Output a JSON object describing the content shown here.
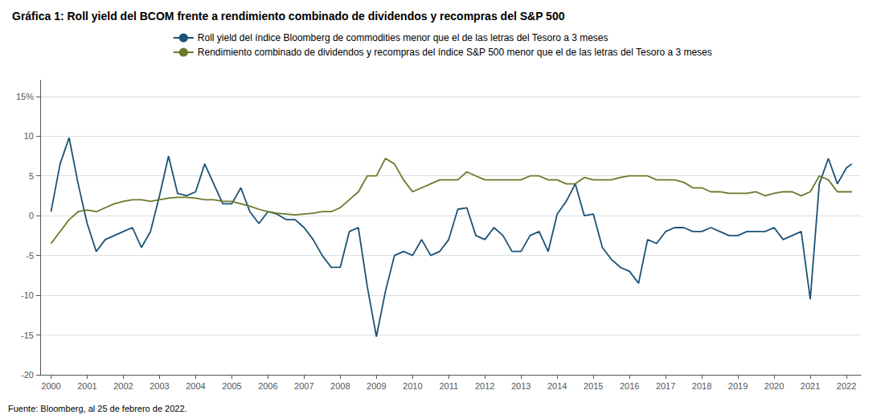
{
  "chart_data": {
    "type": "line",
    "title": "Gráfica 1: Roll yield del BCOM frente a rendimiento combinado de dividendos y recompras del S&P 500",
    "source": "Fuente: Bloomberg, al 25 de febrero de 2022.",
    "x": [
      2000.0,
      2000.25,
      2000.5,
      2000.75,
      2001.0,
      2001.25,
      2001.5,
      2001.75,
      2002.0,
      2002.25,
      2002.5,
      2002.75,
      2003.0,
      2003.25,
      2003.5,
      2003.75,
      2004.0,
      2004.25,
      2004.5,
      2004.75,
      2005.0,
      2005.25,
      2005.5,
      2005.75,
      2006.0,
      2006.25,
      2006.5,
      2006.75,
      2007.0,
      2007.25,
      2007.5,
      2007.75,
      2008.0,
      2008.25,
      2008.5,
      2008.75,
      2009.0,
      2009.25,
      2009.5,
      2009.75,
      2010.0,
      2010.25,
      2010.5,
      2010.75,
      2011.0,
      2011.25,
      2011.5,
      2011.75,
      2012.0,
      2012.25,
      2012.5,
      2012.75,
      2013.0,
      2013.25,
      2013.5,
      2013.75,
      2014.0,
      2014.25,
      2014.5,
      2014.75,
      2015.0,
      2015.25,
      2015.5,
      2015.75,
      2016.0,
      2016.25,
      2016.5,
      2016.75,
      2017.0,
      2017.25,
      2017.5,
      2017.75,
      2018.0,
      2018.25,
      2018.5,
      2018.75,
      2019.0,
      2019.25,
      2019.5,
      2019.75,
      2020.0,
      2020.25,
      2020.5,
      2020.75,
      2021.0,
      2021.25,
      2021.5,
      2021.75,
      2022.0,
      2022.15
    ],
    "series": [
      {
        "name": "Roll yield del índice Bloomberg de commodities menor que el de las letras del Tesoro a 3 meses",
        "color": "#1a5276",
        "values": [
          0.5,
          6.5,
          9.8,
          4.0,
          -1.0,
          -4.5,
          -3.0,
          -2.5,
          -2.0,
          -1.5,
          -4.0,
          -2.0,
          2.5,
          7.5,
          2.8,
          2.5,
          3.0,
          6.5,
          4.0,
          1.5,
          1.5,
          3.5,
          0.5,
          -1.0,
          0.5,
          0.2,
          -0.5,
          -0.5,
          -1.5,
          -3.0,
          -5.0,
          -6.5,
          -6.5,
          -2.0,
          -1.5,
          -9.0,
          -15.2,
          -9.5,
          -5.0,
          -4.5,
          -5.0,
          -3.0,
          -5.0,
          -4.5,
          -3.0,
          0.8,
          1.0,
          -2.5,
          -3.0,
          -1.5,
          -2.5,
          -4.5,
          -4.5,
          -2.5,
          -2.0,
          -4.5,
          0.2,
          1.8,
          4.0,
          0.0,
          0.2,
          -4.0,
          -5.5,
          -6.5,
          -7.0,
          -8.5,
          -3.0,
          -3.5,
          -2.0,
          -1.5,
          -1.5,
          -2.0,
          -2.0,
          -1.5,
          -2.0,
          -2.5,
          -2.5,
          -2.0,
          -2.0,
          -2.0,
          -1.5,
          -3.0,
          -2.5,
          -2.0,
          -10.5,
          4.0,
          7.2,
          4.0,
          6.0,
          6.5
        ]
      },
      {
        "name": "Rendimiento combinado de dividendos y recompras del índice S&P 500 menor que el de las letras del Tesoro a 3 meses",
        "color": "#6b7a2a",
        "values": [
          -3.5,
          -2.0,
          -0.5,
          0.5,
          0.7,
          0.5,
          1.0,
          1.5,
          1.8,
          2.0,
          2.0,
          1.8,
          2.0,
          2.2,
          2.3,
          2.3,
          2.2,
          2.0,
          2.0,
          1.8,
          1.8,
          1.5,
          1.2,
          0.8,
          0.5,
          0.3,
          0.2,
          0.1,
          0.2,
          0.3,
          0.5,
          0.5,
          1.0,
          2.0,
          3.0,
          5.0,
          5.0,
          7.2,
          6.5,
          4.5,
          3.0,
          3.5,
          4.0,
          4.5,
          4.5,
          4.5,
          5.5,
          5.0,
          4.5,
          4.5,
          4.5,
          4.5,
          4.5,
          5.0,
          5.0,
          4.5,
          4.5,
          4.0,
          4.0,
          4.8,
          4.5,
          4.5,
          4.5,
          4.8,
          5.0,
          5.0,
          5.0,
          4.5,
          4.5,
          4.5,
          4.2,
          3.5,
          3.5,
          3.0,
          3.0,
          2.8,
          2.8,
          2.8,
          3.0,
          2.5,
          2.8,
          3.0,
          3.0,
          2.5,
          3.0,
          5.0,
          4.5,
          3.0,
          3.0,
          3.0
        ]
      }
    ],
    "xlim": [
      1999.7,
      2022.4
    ],
    "xticks": [
      2000,
      2001,
      2002,
      2003,
      2004,
      2005,
      2006,
      2007,
      2008,
      2009,
      2010,
      2011,
      2012,
      2013,
      2014,
      2015,
      2016,
      2017,
      2018,
      2019,
      2020,
      2021,
      2022
    ],
    "ylim": [
      -20,
      17
    ],
    "yticks": [
      -20,
      -15,
      -10,
      -5,
      0,
      5,
      10,
      {
        "value": 15,
        "label": "15%"
      }
    ],
    "grid": true,
    "legend": "top"
  }
}
